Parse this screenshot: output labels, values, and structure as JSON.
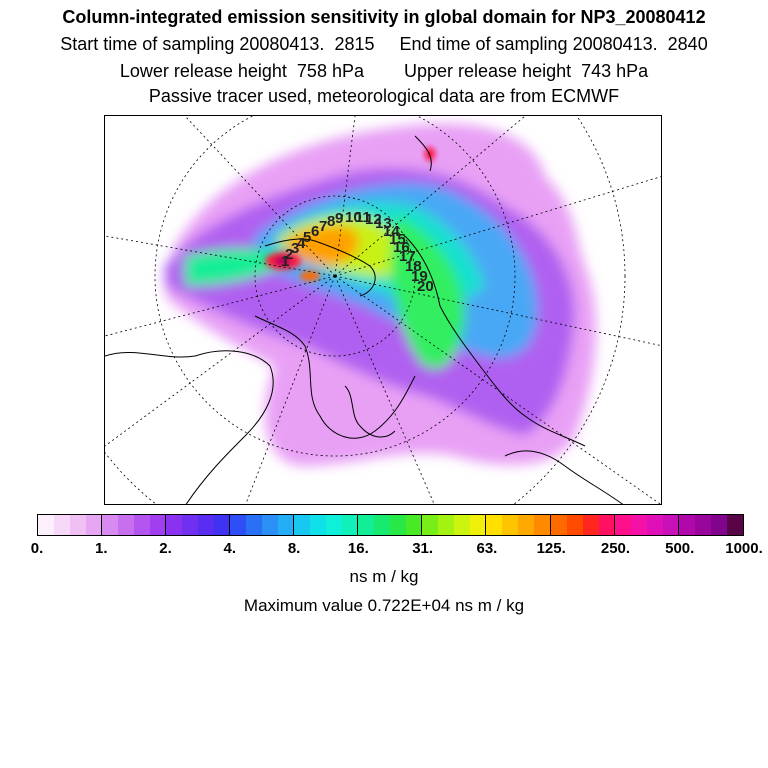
{
  "title": "Column-integrated emission sensitivity in global domain for NP3_20080412",
  "sampling_line": "Start time of sampling 20080413.  2815     End time of sampling 20080413.  2840",
  "height_line": "Lower release height  758 hPa        Upper release height  743 hPa",
  "tracer_line": "Passive tracer used, meteorological data are from ECMWF",
  "map": {
    "route_labels": [
      "1",
      "2",
      "3",
      "4",
      "5",
      "6",
      "7",
      "8",
      "9",
      "10",
      "11",
      "12",
      "13",
      "14",
      "15",
      "16",
      "17",
      "18",
      "19",
      "20"
    ]
  },
  "colorbar": {
    "tick_labels": [
      "0.",
      "1.",
      "2.",
      "4.",
      "8.",
      "16.",
      "31.",
      "63.",
      "125.",
      "250.",
      "500.",
      "1000."
    ],
    "colors": [
      "#fdf0fd",
      "#f8d8f8",
      "#f0c0f5",
      "#e6a6f3",
      "#d88af0",
      "#c86ff0",
      "#b455f0",
      "#a03ef0",
      "#8a32f0",
      "#7030f0",
      "#5a2ef0",
      "#3f32f3",
      "#2e4ff5",
      "#2a70f5",
      "#2a90f5",
      "#22adf5",
      "#18c8f0",
      "#10e0e8",
      "#10f0d8",
      "#10f0b8",
      "#12ee95",
      "#18ea70",
      "#28e845",
      "#48ea25",
      "#78ee18",
      "#a4f212",
      "#ccf40e",
      "#f0f00a",
      "#ffe000",
      "#ffc400",
      "#ffa800",
      "#ff8a00",
      "#ff6a00",
      "#ff4a00",
      "#ff2620",
      "#ff1060",
      "#ff108a",
      "#f510a8",
      "#e010b8",
      "#c810b8",
      "#b008aa",
      "#98069c",
      "#80048c",
      "#5a0448"
    ]
  },
  "unit_label": "ns m / kg",
  "max_value_text": "Maximum value  0.722E+04 ns m / kg"
}
